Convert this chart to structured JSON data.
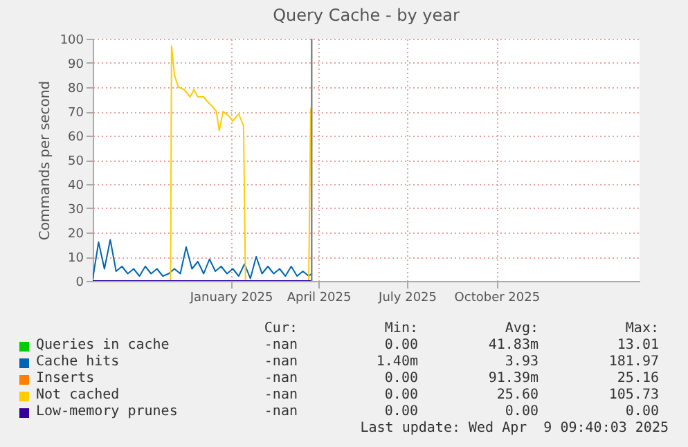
{
  "chart_data": {
    "type": "line",
    "title": "Query Cache - by year",
    "ylabel": "Commands per second",
    "xlim": [
      "2024-08-27",
      "2026-03-12"
    ],
    "xticks": [
      {
        "value": "2025-01-16",
        "label": "January 2025"
      },
      {
        "value": "2025-04-16",
        "label": "April 2025"
      },
      {
        "value": "2025-07-16",
        "label": "July 2025"
      },
      {
        "value": "2025-10-16",
        "label": "October 2025"
      }
    ],
    "ylim": [
      0,
      100
    ],
    "yticks": [
      0,
      10,
      20,
      30,
      40,
      50,
      60,
      70,
      80,
      90,
      100
    ],
    "grid": true,
    "legend": "bottom",
    "series": [
      {
        "name": "Queries in cache",
        "color": "#00cc00"
      },
      {
        "name": "Cache hits",
        "color": "#0066b3",
        "x": [
          "2024-08-27",
          "2024-09-02",
          "2024-09-08",
          "2024-09-14",
          "2024-09-20",
          "2024-09-26",
          "2024-10-02",
          "2024-10-08",
          "2024-10-14",
          "2024-10-20",
          "2024-10-26",
          "2024-11-01",
          "2024-11-07",
          "2024-11-13",
          "2024-11-19",
          "2024-11-25",
          "2024-12-01",
          "2024-12-07",
          "2024-12-13",
          "2024-12-19",
          "2024-12-25",
          "2024-12-31",
          "2025-01-06",
          "2025-01-12",
          "2025-01-18",
          "2025-01-24",
          "2025-01-30",
          "2025-02-05",
          "2025-02-11",
          "2025-02-17",
          "2025-02-23",
          "2025-03-01",
          "2025-03-07",
          "2025-03-13",
          "2025-03-19",
          "2025-03-25",
          "2025-03-31",
          "2025-04-06",
          "2025-04-09"
        ],
        "values": [
          1,
          16,
          5,
          17,
          4,
          6,
          3,
          5,
          2,
          6,
          3,
          5,
          2,
          3,
          5,
          3,
          14,
          5,
          8,
          3,
          9,
          4,
          6,
          3,
          5,
          2,
          7,
          1,
          10,
          3,
          6,
          3,
          5,
          2,
          6,
          2,
          4,
          2,
          3
        ]
      },
      {
        "name": "Inserts",
        "color": "#ff8000"
      },
      {
        "name": "Not cached",
        "color": "#ffcc00",
        "x": [
          "2024-08-27",
          "2024-11-15",
          "2024-11-16",
          "2024-11-19",
          "2024-11-23",
          "2024-11-29",
          "2024-12-05",
          "2024-12-09",
          "2024-12-13",
          "2024-12-19",
          "2024-12-23",
          "2024-12-28",
          "2025-01-01",
          "2025-01-04",
          "2025-01-08",
          "2025-01-14",
          "2025-01-18",
          "2025-01-24",
          "2025-01-28",
          "2025-01-29",
          "2025-01-31",
          "2025-04-06",
          "2025-04-08",
          "2025-04-09"
        ],
        "values": [
          0,
          0,
          97,
          85,
          80,
          79,
          76,
          79,
          76,
          76,
          74,
          72,
          70,
          62,
          70,
          68,
          66,
          69,
          65,
          64,
          0,
          0,
          71,
          71
        ]
      },
      {
        "name": "Low-memory prunes",
        "color": "#330099",
        "x": [
          "2024-08-27",
          "2025-04-09"
        ],
        "values": [
          0,
          0
        ]
      }
    ],
    "ref_lines": [
      {
        "axis": "x",
        "value": "2025-04-09",
        "color": "#808080"
      }
    ],
    "annotations": [
      "Cur:",
      "Min:",
      "Avg:",
      "Max:",
      "-nan",
      "0.00",
      "41.83m",
      "13.01",
      "-nan",
      "1.40m",
      "3.93",
      "181.97",
      "-nan",
      "0.00",
      "91.39m",
      "25.16",
      "-nan",
      "0.00",
      "25.60",
      "105.73",
      "-nan",
      "0.00",
      "0.00",
      "0.00",
      "Last update: Wed Apr  9 09:40:03 2025"
    ]
  }
}
